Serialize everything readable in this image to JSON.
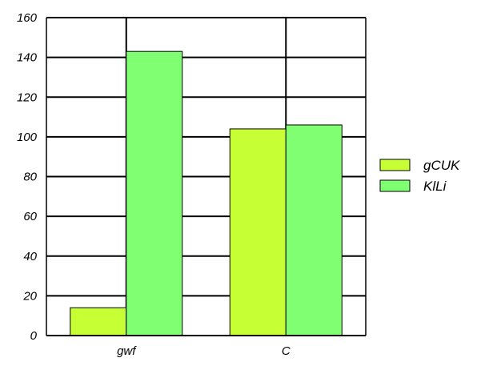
{
  "chart_data": {
    "type": "bar",
    "categories": [
      "gwf",
      "C"
    ],
    "series": [
      {
        "name": "gCUK",
        "values": [
          14,
          104
        ],
        "color": "#c6ff33"
      },
      {
        "name": "KlLi",
        "values": [
          143,
          106
        ],
        "color": "#80ff73"
      }
    ],
    "ylim": [
      0,
      160
    ],
    "yticks": [
      0,
      20,
      40,
      60,
      80,
      100,
      120,
      140,
      160
    ],
    "grid": true,
    "legend_position": "right"
  }
}
